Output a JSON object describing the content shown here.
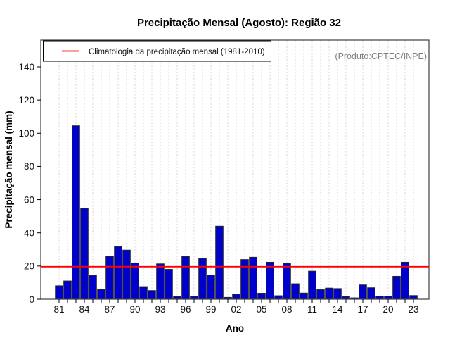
{
  "title": "Precipitação Mensal (Agosto): Região 32",
  "watermark": "(Produto:CPTEC/INPE)",
  "legend": {
    "label": "Climatologia da precipitação mensal (1981-2010)"
  },
  "axes": {
    "x_label": "Ano",
    "y_label": "Precipitação mensal (mm)",
    "y_ticks": [
      0,
      20,
      40,
      60,
      80,
      100,
      120,
      140
    ],
    "x_tick_labels": [
      "81",
      "84",
      "87",
      "90",
      "93",
      "96",
      "99",
      "02",
      "05",
      "08",
      "11",
      "14",
      "17",
      "20",
      "23"
    ]
  },
  "colors": {
    "bar_fill": "#0000CD",
    "bar_border": "#262626",
    "climatology_line": "#FF0000",
    "grid": "#D6D6D6",
    "axis": "#000000",
    "watermark_text": "#808080"
  },
  "chart_data": {
    "type": "bar",
    "title": "Precipitação Mensal (Agosto): Região 32",
    "xlabel": "Ano",
    "ylabel": "Precipitação mensal (mm)",
    "x": [
      1981,
      1982,
      1983,
      1984,
      1985,
      1986,
      1987,
      1988,
      1989,
      1990,
      1991,
      1992,
      1993,
      1994,
      1995,
      1996,
      1997,
      1998,
      1999,
      2000,
      2001,
      2002,
      2003,
      2004,
      2005,
      2006,
      2007,
      2008,
      2009,
      2010,
      2011,
      2012,
      2013,
      2014,
      2015,
      2016,
      2017,
      2018,
      2019,
      2020,
      2021,
      2022,
      2023
    ],
    "values": [
      8.1,
      11.0,
      104.5,
      54.7,
      14.3,
      5.8,
      25.8,
      31.6,
      29.6,
      21.8,
      7.6,
      5.2,
      21.3,
      18.0,
      1.5,
      25.7,
      1.7,
      24.5,
      14.6,
      44.0,
      1.1,
      2.9,
      23.9,
      25.3,
      3.6,
      22.3,
      2.1,
      21.6,
      9.3,
      3.7,
      16.9,
      5.7,
      6.7,
      6.4,
      1.5,
      0.8,
      8.6,
      6.9,
      1.9,
      1.9,
      13.8,
      22.3,
      2.2
    ],
    "climatology": 19.6,
    "ylim": [
      0,
      156
    ],
    "x_label_step": 3,
    "grid": "vertical-dashed",
    "legend_position": "top-left"
  }
}
